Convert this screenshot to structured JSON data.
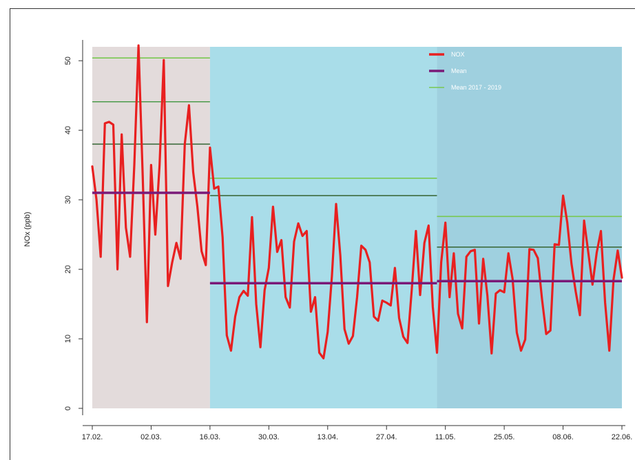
{
  "chart_data": {
    "type": "line",
    "ylabel": "NOx (ppb)",
    "xlabel": "",
    "title": "",
    "ylim": [
      0,
      52
    ],
    "yticks": [
      0,
      10,
      20,
      30,
      40,
      50
    ],
    "x_tick_labels": [
      "17.02.",
      "02.03.",
      "16.03.",
      "30.03.",
      "13.04.",
      "27.04.",
      "11.05.",
      "25.05.",
      "08.06.",
      "22.06."
    ],
    "x_tick_days": [
      0,
      14,
      28,
      42,
      56,
      70,
      84,
      98,
      112,
      126
    ],
    "xlim_days": [
      0,
      126
    ],
    "periods": [
      {
        "start_day": 0,
        "end_day": 28,
        "color": "#e3dbdb"
      },
      {
        "start_day": 28,
        "end_day": 82,
        "color": "#a9dde9"
      },
      {
        "start_day": 82,
        "end_day": 126,
        "color": "#9fd0df"
      }
    ],
    "legend": {
      "position": "top-right",
      "entries": [
        {
          "label": "NOX",
          "color": "#e82020"
        },
        {
          "label": "Mean",
          "color": "#7a1a78"
        },
        {
          "label": "Mean 2017 - 2019",
          "color": "#78c850"
        }
      ]
    },
    "mean_segments": [
      {
        "x_start_day": 0,
        "x_end_day": 28,
        "value": 31.0
      },
      {
        "x_start_day": 28,
        "x_end_day": 82,
        "value": 18.0
      },
      {
        "x_start_day": 82,
        "x_end_day": 126,
        "value": 18.3
      }
    ],
    "historic_segments": [
      {
        "x_start_day": 0,
        "x_end_day": 28,
        "value": 50.4,
        "color": "#78c850"
      },
      {
        "x_start_day": 0,
        "x_end_day": 28,
        "value": 44.1,
        "color": "#4a9a4a"
      },
      {
        "x_start_day": 0,
        "x_end_day": 28,
        "value": 38.0,
        "color": "#3d6b3d"
      },
      {
        "x_start_day": 28,
        "x_end_day": 82,
        "value": 33.1,
        "color": "#78c850"
      },
      {
        "x_start_day": 28,
        "x_end_day": 82,
        "value": 30.6,
        "color": "#3d6b3d"
      },
      {
        "x_start_day": 82,
        "x_end_day": 126,
        "value": 27.6,
        "color": "#78c850"
      },
      {
        "x_start_day": 82,
        "x_end_day": 126,
        "value": 23.2,
        "color": "#3d6b3d"
      }
    ],
    "series": [
      {
        "name": "NOX",
        "color": "#e82020",
        "x": [
          0,
          1,
          2,
          3,
          4,
          5,
          6,
          7,
          8,
          9,
          10,
          11,
          12,
          13,
          14,
          15,
          16,
          17,
          18,
          19,
          20,
          21,
          22,
          23,
          24,
          25,
          26,
          27,
          28,
          29,
          30,
          31,
          32,
          33,
          34,
          35,
          36,
          37,
          38,
          39,
          40,
          41,
          42,
          43,
          44,
          45,
          46,
          47,
          48,
          49,
          50,
          51,
          52,
          53,
          54,
          55,
          56,
          57,
          58,
          59,
          60,
          61,
          62,
          63,
          64,
          65,
          66,
          67,
          68,
          69,
          70,
          71,
          72,
          73,
          74,
          75,
          76,
          77,
          78,
          79,
          80,
          81,
          82,
          83,
          84,
          85,
          86,
          87,
          88,
          89,
          90,
          91,
          92,
          93,
          94,
          95,
          96,
          97,
          98,
          99,
          100,
          101,
          102,
          103,
          104,
          105,
          106,
          107,
          108,
          109,
          110,
          111,
          112,
          113,
          114,
          115,
          116,
          117,
          118,
          119,
          120,
          121,
          122,
          123,
          124,
          125,
          126
        ],
        "y": [
          34.8,
          30.0,
          21.8,
          41.0,
          41.2,
          40.8,
          20.0,
          39.4,
          26.0,
          21.8,
          35.0,
          52.2,
          33.5,
          12.4,
          35.0,
          25.0,
          35.0,
          50.1,
          17.6,
          21.0,
          23.8,
          21.5,
          38.0,
          43.6,
          34.0,
          29.0,
          22.6,
          20.6,
          37.5,
          31.6,
          31.9,
          24.6,
          10.5,
          8.3,
          13.2,
          16.0,
          16.9,
          16.2,
          27.5,
          15.0,
          8.8,
          17.0,
          20.2,
          29.0,
          22.5,
          24.2,
          16.0,
          14.5,
          24.0,
          26.6,
          24.8,
          25.5,
          13.9,
          16.0,
          8.0,
          7.2,
          11.0,
          19.0,
          29.4,
          22.0,
          11.4,
          9.3,
          10.4,
          16.0,
          23.4,
          22.8,
          21.0,
          13.2,
          12.6,
          15.5,
          15.2,
          14.8,
          20.2,
          13.0,
          10.3,
          9.4,
          17.0,
          25.5,
          16.3,
          23.8,
          26.3,
          14.6,
          8.0,
          21.0,
          26.7,
          16.0,
          22.3,
          13.6,
          11.5,
          21.8,
          22.6,
          22.8,
          12.2,
          21.5,
          16.2,
          7.9,
          16.5,
          17.0,
          16.7,
          22.3,
          18.6,
          10.9,
          8.3,
          9.9,
          22.9,
          22.8,
          21.6,
          15.7,
          10.7,
          11.2,
          23.6,
          23.5,
          30.6,
          26.7,
          20.8,
          16.8,
          13.4,
          27.0,
          22.4,
          17.8,
          22.4,
          25.5,
          15.2,
          8.3,
          18.5,
          22.7,
          18.8
        ]
      },
      {
        "name": "Mean",
        "color": "#7a1a78"
      },
      {
        "name": "Mean 2017 - 2019",
        "color": "#78c850"
      }
    ]
  }
}
